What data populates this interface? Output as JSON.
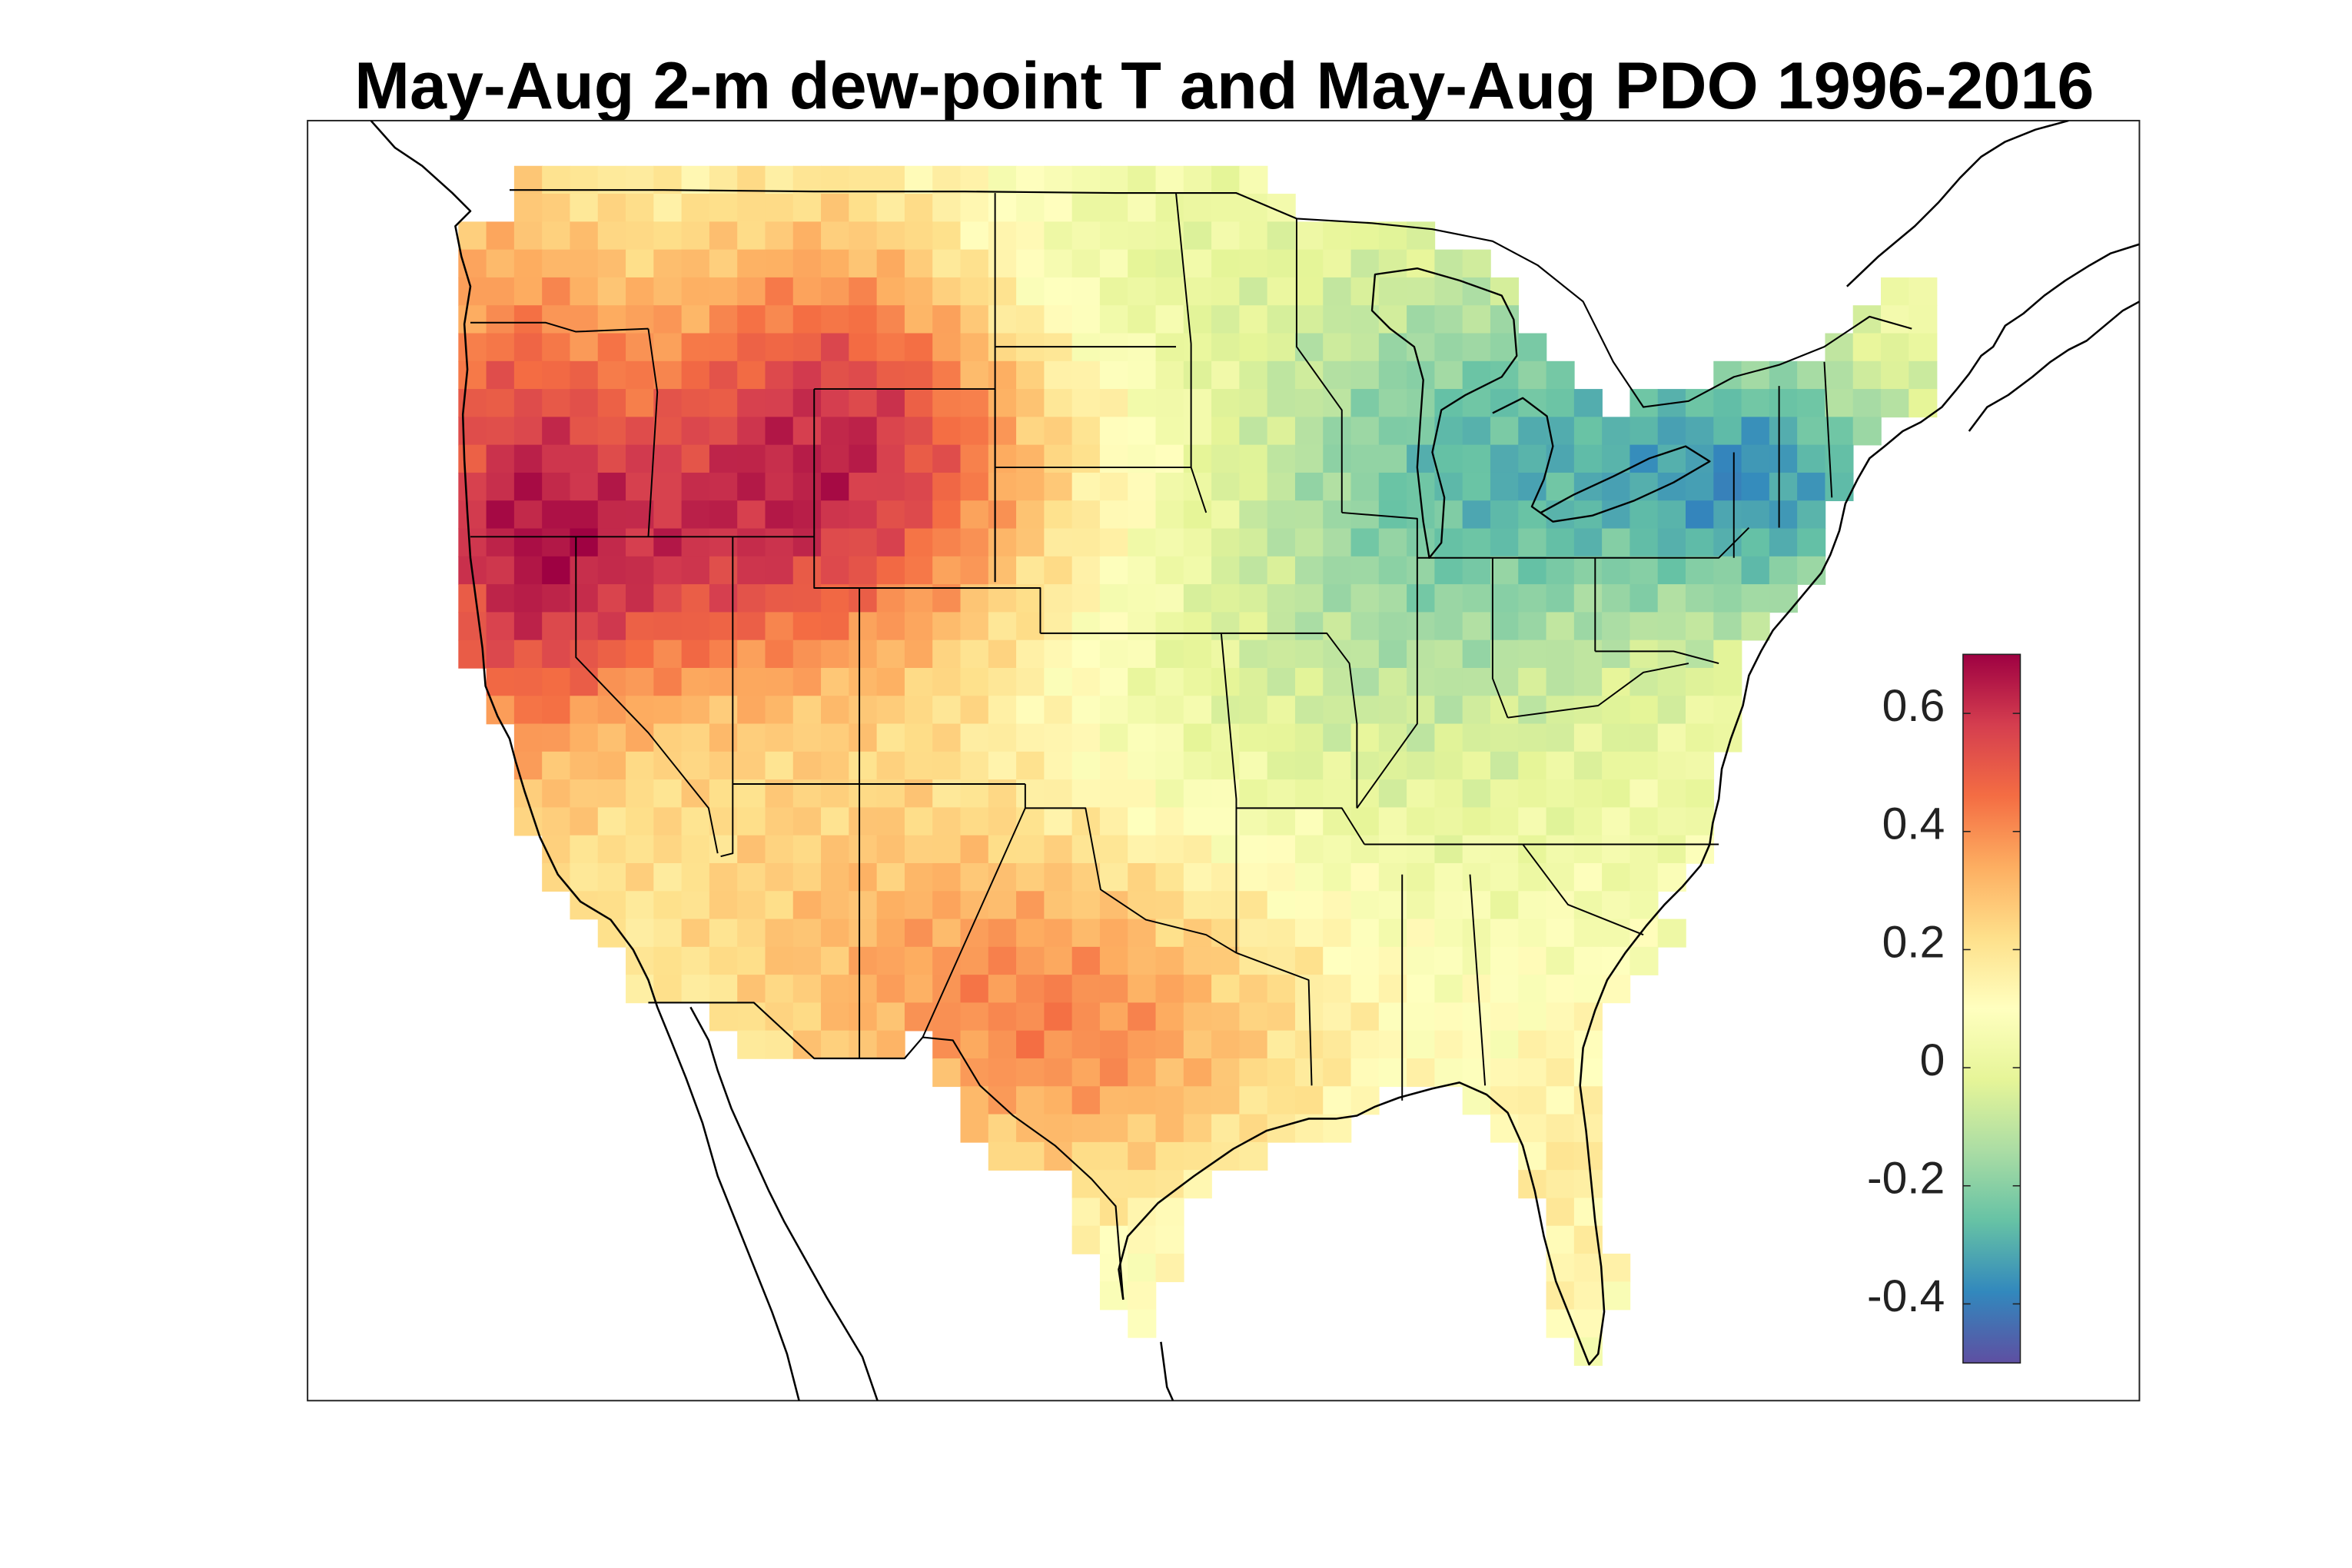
{
  "figure": {
    "title": "May-Aug 2-m dew-point T and May-Aug PDO 1996-2016"
  },
  "colorbar": {
    "min": -0.5,
    "max": 0.7,
    "ticks": [
      "0.6",
      "0.4",
      "0.2",
      "0",
      "-0.2",
      "-0.4"
    ],
    "tick_values": [
      0.6,
      0.4,
      0.2,
      0,
      -0.2,
      -0.4
    ],
    "colormap": "spectral-reversed",
    "colors": [
      "#5e4fa2",
      "#3288bd",
      "#66c2a5",
      "#abdda4",
      "#e6f598",
      "#ffffbf",
      "#fee08b",
      "#fdae61",
      "#f46d43",
      "#d53e4f",
      "#9e0142"
    ]
  },
  "map": {
    "region": "contiguous-united-states",
    "features": [
      "coastlines",
      "state-boundaries",
      "great-lakes"
    ],
    "field": "correlation-grid"
  }
}
